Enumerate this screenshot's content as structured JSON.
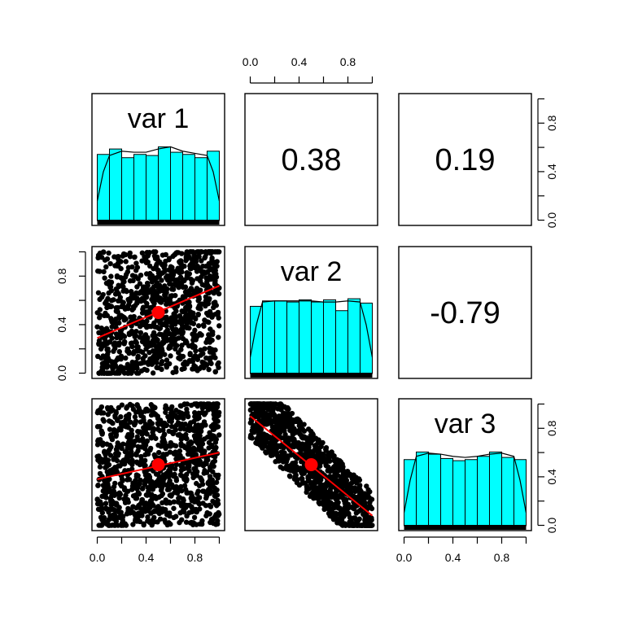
{
  "chart_data": {
    "type": "scatter",
    "variables": [
      "var 1",
      "var 2",
      "var 3"
    ],
    "axis_range": [
      0,
      1
    ],
    "tick_labels": [
      "0.0",
      "0.4",
      "0.8"
    ],
    "tick_values": [
      0,
      0.2,
      0.4,
      0.6,
      0.8,
      1.0
    ],
    "correlations": [
      {
        "row": 0,
        "col": 1,
        "label": "0.38",
        "value": 0.38
      },
      {
        "row": 0,
        "col": 2,
        "label": "0.19",
        "value": 0.19
      },
      {
        "row": 1,
        "col": 2,
        "label": "-0.79",
        "value": -0.79
      }
    ],
    "histograms": [
      {
        "variable": "var 1",
        "breaks": [
          0,
          0.1,
          0.2,
          0.3,
          0.4,
          0.5,
          0.6,
          0.7,
          0.8,
          0.9,
          1.0
        ],
        "heights": [
          0.61,
          0.66,
          0.58,
          0.61,
          0.6,
          0.68,
          0.63,
          0.61,
          0.58,
          0.64
        ]
      },
      {
        "variable": "var 2",
        "breaks": [
          0,
          0.1,
          0.2,
          0.3,
          0.4,
          0.5,
          0.6,
          0.7,
          0.8,
          0.9,
          1.0
        ],
        "heights": [
          0.62,
          0.67,
          0.67,
          0.66,
          0.68,
          0.66,
          0.68,
          0.58,
          0.69,
          0.65
        ]
      },
      {
        "variable": "var 3",
        "breaks": [
          0,
          0.1,
          0.2,
          0.3,
          0.4,
          0.5,
          0.6,
          0.7,
          0.8,
          0.9,
          1.0
        ],
        "heights": [
          0.61,
          0.68,
          0.66,
          0.62,
          0.6,
          0.61,
          0.64,
          0.68,
          0.63,
          0.61
        ]
      }
    ],
    "densities": [
      {
        "variable": "var 1",
        "x": [
          0,
          0.05,
          0.1,
          0.2,
          0.3,
          0.4,
          0.5,
          0.6,
          0.7,
          0.8,
          0.9,
          0.95,
          1.0
        ],
        "y": [
          0.18,
          0.45,
          0.6,
          0.64,
          0.63,
          0.63,
          0.66,
          0.68,
          0.64,
          0.62,
          0.6,
          0.45,
          0.18
        ]
      },
      {
        "variable": "var 2",
        "x": [
          0,
          0.05,
          0.1,
          0.2,
          0.3,
          0.4,
          0.5,
          0.6,
          0.7,
          0.8,
          0.9,
          0.95,
          1.0
        ],
        "y": [
          0.15,
          0.45,
          0.66,
          0.67,
          0.67,
          0.67,
          0.67,
          0.66,
          0.66,
          0.67,
          0.66,
          0.45,
          0.15
        ]
      },
      {
        "variable": "var 3",
        "x": [
          0,
          0.05,
          0.1,
          0.2,
          0.3,
          0.4,
          0.5,
          0.6,
          0.7,
          0.8,
          0.9,
          0.95,
          1.0
        ],
        "y": [
          0.12,
          0.42,
          0.64,
          0.67,
          0.66,
          0.64,
          0.63,
          0.64,
          0.66,
          0.67,
          0.64,
          0.42,
          0.12
        ]
      }
    ],
    "scatter_panels": [
      {
        "x_var": "var 1",
        "y_var": "var 2",
        "fit": {
          "x": [
            0,
            1
          ],
          "y": [
            0.29,
            0.72
          ]
        },
        "mean": [
          0.5,
          0.5
        ],
        "correlation": 0.38
      },
      {
        "x_var": "var 1",
        "y_var": "var 3",
        "fit": {
          "x": [
            0,
            1
          ],
          "y": [
            0.38,
            0.6
          ]
        },
        "mean": [
          0.5,
          0.5
        ],
        "correlation": 0.19
      },
      {
        "x_var": "var 2",
        "y_var": "var 3",
        "fit": {
          "x": [
            0,
            1
          ],
          "y": [
            0.9,
            0.08
          ]
        },
        "mean": [
          0.5,
          0.5
        ],
        "correlation": -0.79
      }
    ],
    "colors": {
      "histogram": "#00ffff",
      "fit": "#ff0000",
      "points": "#000000"
    }
  }
}
